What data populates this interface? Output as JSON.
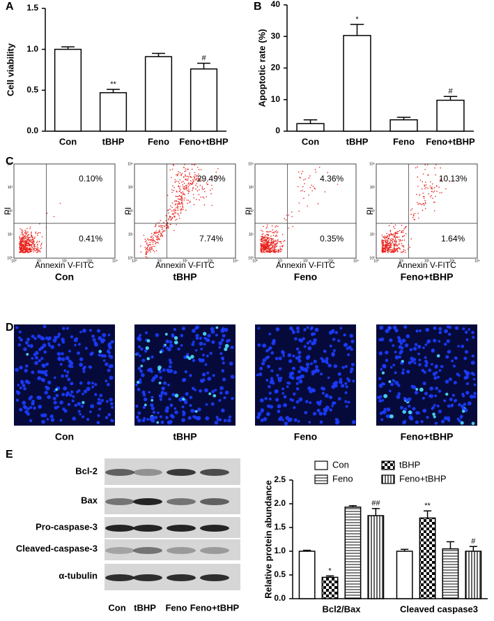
{
  "chart_data": [
    {
      "type": "bar",
      "panel": "A",
      "y_label": "Cell viability",
      "categories": [
        "Con",
        "tBHP",
        "Feno",
        "Feno+tBHP"
      ],
      "values": [
        1.0,
        0.47,
        0.91,
        0.76
      ],
      "errors": [
        0.03,
        0.04,
        0.04,
        0.07
      ],
      "annotations": [
        null,
        "**",
        null,
        "#"
      ],
      "color": "#ffffff",
      "ylim": [
        0,
        1.5
      ],
      "yticks": [
        {
          "value": 0,
          "label": "0.0"
        },
        {
          "value": 0.5,
          "label": "0.5"
        },
        {
          "value": 1,
          "label": "1.0"
        },
        {
          "value": 1.5,
          "label": "1.5"
        }
      ]
    },
    {
      "type": "bar",
      "panel": "B",
      "y_label": "Apoptotic rate (%)",
      "categories": [
        "Con",
        "tBHP",
        "Feno",
        "Feno+tBHP"
      ],
      "values": [
        2.4,
        30.3,
        3.6,
        9.8
      ],
      "errors": [
        1.2,
        3.5,
        0.8,
        1.2
      ],
      "annotations": [
        null,
        "*",
        null,
        "#"
      ],
      "color": "#ffffff",
      "ylim": [
        0,
        40
      ],
      "yticks": [
        0,
        10,
        20,
        30,
        40
      ]
    },
    {
      "type": "bar",
      "panel": "E",
      "y_label": "Relative protein abundance",
      "categories": [
        "Bcl2/Bax",
        "Cleaved caspase3"
      ],
      "series": [
        {
          "name": "Con",
          "pattern": "none",
          "values": [
            1.0,
            1.0
          ],
          "errors": [
            0.02,
            0.04
          ],
          "annotations": [
            null,
            null
          ]
        },
        {
          "name": "tBHP",
          "pattern": "checker",
          "values": [
            0.45,
            1.7
          ],
          "errors": [
            0.03,
            0.15
          ],
          "annotations": [
            "*",
            "**"
          ]
        },
        {
          "name": "Feno",
          "pattern": "horizontal",
          "values": [
            1.93,
            1.05
          ],
          "errors": [
            0.03,
            0.15
          ],
          "annotations": [
            null,
            null
          ]
        },
        {
          "name": "Feno+tBHP",
          "pattern": "vertical",
          "values": [
            1.75,
            1.0
          ],
          "errors": [
            0.15,
            0.1
          ],
          "annotations": [
            "##",
            "#"
          ]
        }
      ],
      "ylim": [
        0,
        2.5
      ],
      "yticks": [
        {
          "value": 0,
          "label": "0.0"
        },
        {
          "value": 0.5,
          "label": "0.5"
        },
        {
          "value": 1,
          "label": "1.0"
        },
        {
          "value": 1.5,
          "label": "1.5"
        },
        {
          "value": 2,
          "label": "2.0"
        },
        {
          "value": 2.5,
          "label": "2.5"
        }
      ]
    }
  ],
  "flow": {
    "panel": "C",
    "y_label": "PI",
    "x_label": "Annexin V-FITC",
    "ticks": [
      "10⁰",
      "10¹",
      "10²",
      "10³",
      "10⁴"
    ],
    "plots": [
      {
        "group": "Con",
        "upper_right": "0.10%",
        "lower_right": "0.41%"
      },
      {
        "group": "tBHP",
        "upper_right": "29.49%",
        "lower_right": "7.74%"
      },
      {
        "group": "Feno",
        "upper_right": "4.36%",
        "lower_right": "0.35%"
      },
      {
        "group": "Feno+tBHP",
        "upper_right": "10.13%",
        "lower_right": "1.64%"
      }
    ]
  },
  "staining": {
    "panel": "D",
    "groups": [
      "Con",
      "tBHP",
      "Feno",
      "Feno+tBHP"
    ]
  },
  "blot": {
    "rows": [
      "Bcl-2",
      "Bax",
      "Pro-caspase-3",
      "Cleaved-caspase-3",
      "α-tubulin"
    ],
    "lanes": [
      "Con",
      "tBHP",
      "Feno",
      "Feno+tBHP"
    ]
  }
}
